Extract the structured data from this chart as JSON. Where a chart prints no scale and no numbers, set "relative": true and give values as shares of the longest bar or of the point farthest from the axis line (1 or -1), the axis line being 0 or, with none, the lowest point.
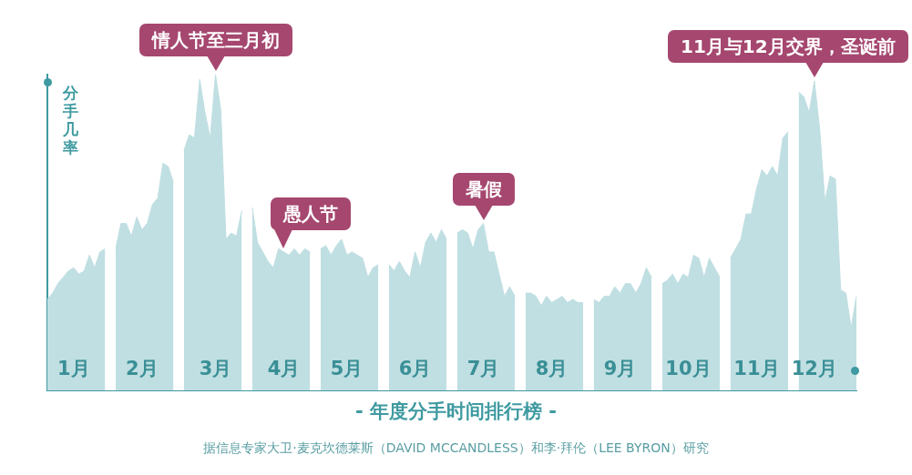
{
  "chart_data": {
    "type": "area",
    "relative": true,
    "title": "- 年度分手时间排行榜 -",
    "ylabel": "分手几率",
    "categories": [
      null,
      null,
      null,
      null,
      null,
      "1月",
      null,
      null,
      null,
      null,
      null,
      null,
      null,
      null,
      null,
      null,
      null,
      null,
      "2月",
      null,
      null,
      null,
      null,
      null,
      null,
      null,
      null,
      null,
      null,
      null,
      null,
      null,
      "3月",
      null,
      null,
      null,
      null,
      null,
      null,
      null,
      null,
      null,
      null,
      null,
      null,
      "4月",
      null,
      null,
      null,
      null,
      null,
      null,
      null,
      null,
      null,
      null,
      null,
      "5月",
      null,
      null,
      null,
      null,
      null,
      null,
      null,
      null,
      null,
      null,
      null,
      null,
      "6月",
      null,
      null,
      null,
      null,
      null,
      null,
      null,
      null,
      null,
      null,
      null,
      null,
      "7月",
      null,
      null,
      null,
      null,
      null,
      null,
      null,
      null,
      null,
      null,
      null,
      null,
      "8月",
      null,
      null,
      null,
      null,
      null,
      null,
      null,
      null,
      null,
      null,
      null,
      null,
      "9月",
      null,
      null,
      null,
      null,
      null,
      null,
      null,
      null,
      null,
      null,
      null,
      null,
      "10月",
      null,
      null,
      null,
      null,
      null,
      null,
      null,
      null,
      null,
      null,
      null,
      null,
      "11月",
      null,
      null,
      null,
      null,
      null,
      null,
      null,
      null,
      null,
      null,
      "12月",
      null,
      null,
      null,
      null,
      null,
      null,
      null,
      null
    ],
    "tick_labels": "x",
    "grid": false,
    "legend": false,
    "series": [
      {
        "color": "#c0dfe2",
        "values": [
          0.29,
          0.31,
          0.34,
          0.36,
          0.38,
          0.39,
          0.37,
          0.38,
          0.43,
          0.39,
          0.44,
          0.45,
          null,
          0.45,
          0.53,
          0.53,
          0.49,
          0.55,
          0.51,
          0.53,
          0.59,
          0.61,
          0.72,
          0.71,
          0.66,
          null,
          0.76,
          0.81,
          0.8,
          0.985,
          0.88,
          0.8,
          1.0,
          0.89,
          0.48,
          0.5,
          0.49,
          0.57,
          null,
          0.58,
          0.47,
          0.44,
          0.41,
          0.39,
          0.45,
          0.44,
          0.43,
          0.45,
          0.43,
          0.45,
          0.44,
          null,
          0.45,
          0.46,
          0.43,
          0.46,
          0.48,
          0.43,
          0.44,
          0.43,
          0.42,
          0.36,
          0.39,
          0.4,
          null,
          0.4,
          0.38,
          0.41,
          0.38,
          0.36,
          0.44,
          0.39,
          0.47,
          0.5,
          0.47,
          0.51,
          0.48,
          null,
          0.5,
          0.51,
          0.5,
          0.45,
          0.51,
          0.53,
          0.44,
          0.44,
          0.37,
          0.3,
          0.33,
          0.3,
          null,
          0.31,
          0.31,
          0.3,
          0.27,
          0.3,
          0.28,
          0.29,
          0.3,
          0.28,
          0.29,
          0.28,
          0.28,
          null,
          0.29,
          0.28,
          0.3,
          0.3,
          0.33,
          0.31,
          0.34,
          0.34,
          0.31,
          0.34,
          0.39,
          0.36,
          null,
          0.34,
          0.35,
          0.37,
          0.34,
          0.37,
          0.36,
          0.43,
          0.42,
          0.36,
          0.42,
          0.39,
          0.36,
          null,
          0.42,
          0.45,
          0.48,
          0.56,
          0.56,
          0.64,
          0.7,
          0.68,
          0.71,
          0.68,
          0.8,
          0.82,
          null,
          0.945,
          0.93,
          0.88,
          0.98,
          0.83,
          0.6,
          0.68,
          0.67,
          0.32,
          0.31,
          0.2,
          0.3
        ]
      }
    ],
    "annotations": [
      {
        "text": "情人节至三月初",
        "x": "3月",
        "y": 1.0
      },
      {
        "text": "愚人节",
        "x": "4月",
        "y": 0.44
      },
      {
        "text": "暑假",
        "x": "7月",
        "y": 0.53
      },
      {
        "text": "11月与12月交界，圣诞前",
        "x": "12月",
        "y": 0.98
      },
      "据信息专家大卫·麦克坎德莱斯（DAVID MCCANDLESS）和李·拜伦（LEE BYRON）研究"
    ]
  }
}
